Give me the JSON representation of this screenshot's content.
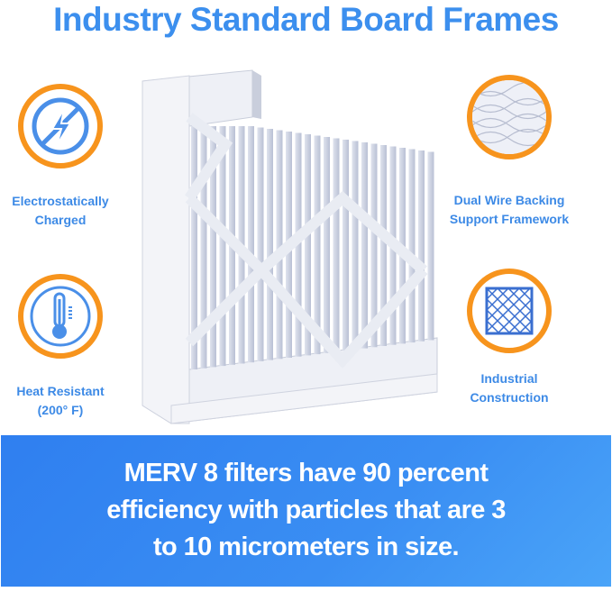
{
  "header": {
    "title": "Industry Standard Board Frames"
  },
  "features": [
    {
      "icon": "lightning-bolt-crossed-icon",
      "line1": "Electrostatically",
      "line2": "Charged"
    },
    {
      "icon": "thermometer-icon",
      "line1": "Heat Resistant",
      "line2": "(200° F)"
    },
    {
      "icon": "wire-mesh-icon",
      "line1": "Dual Wire Backing",
      "line2": "Support Framework"
    },
    {
      "icon": "grid-frame-icon",
      "line1": "Industrial",
      "line2": "Construction"
    }
  ],
  "banner": {
    "line1": "MERV 8 filters have 90 percent",
    "line2": "efficiency with particles that are 3",
    "line3": "to 10 micrometers in size."
  },
  "colors": {
    "title": "#3c8fee",
    "ring": "#f7941d",
    "icon": "#4a8fe8",
    "banner": "#2f7ff0"
  }
}
